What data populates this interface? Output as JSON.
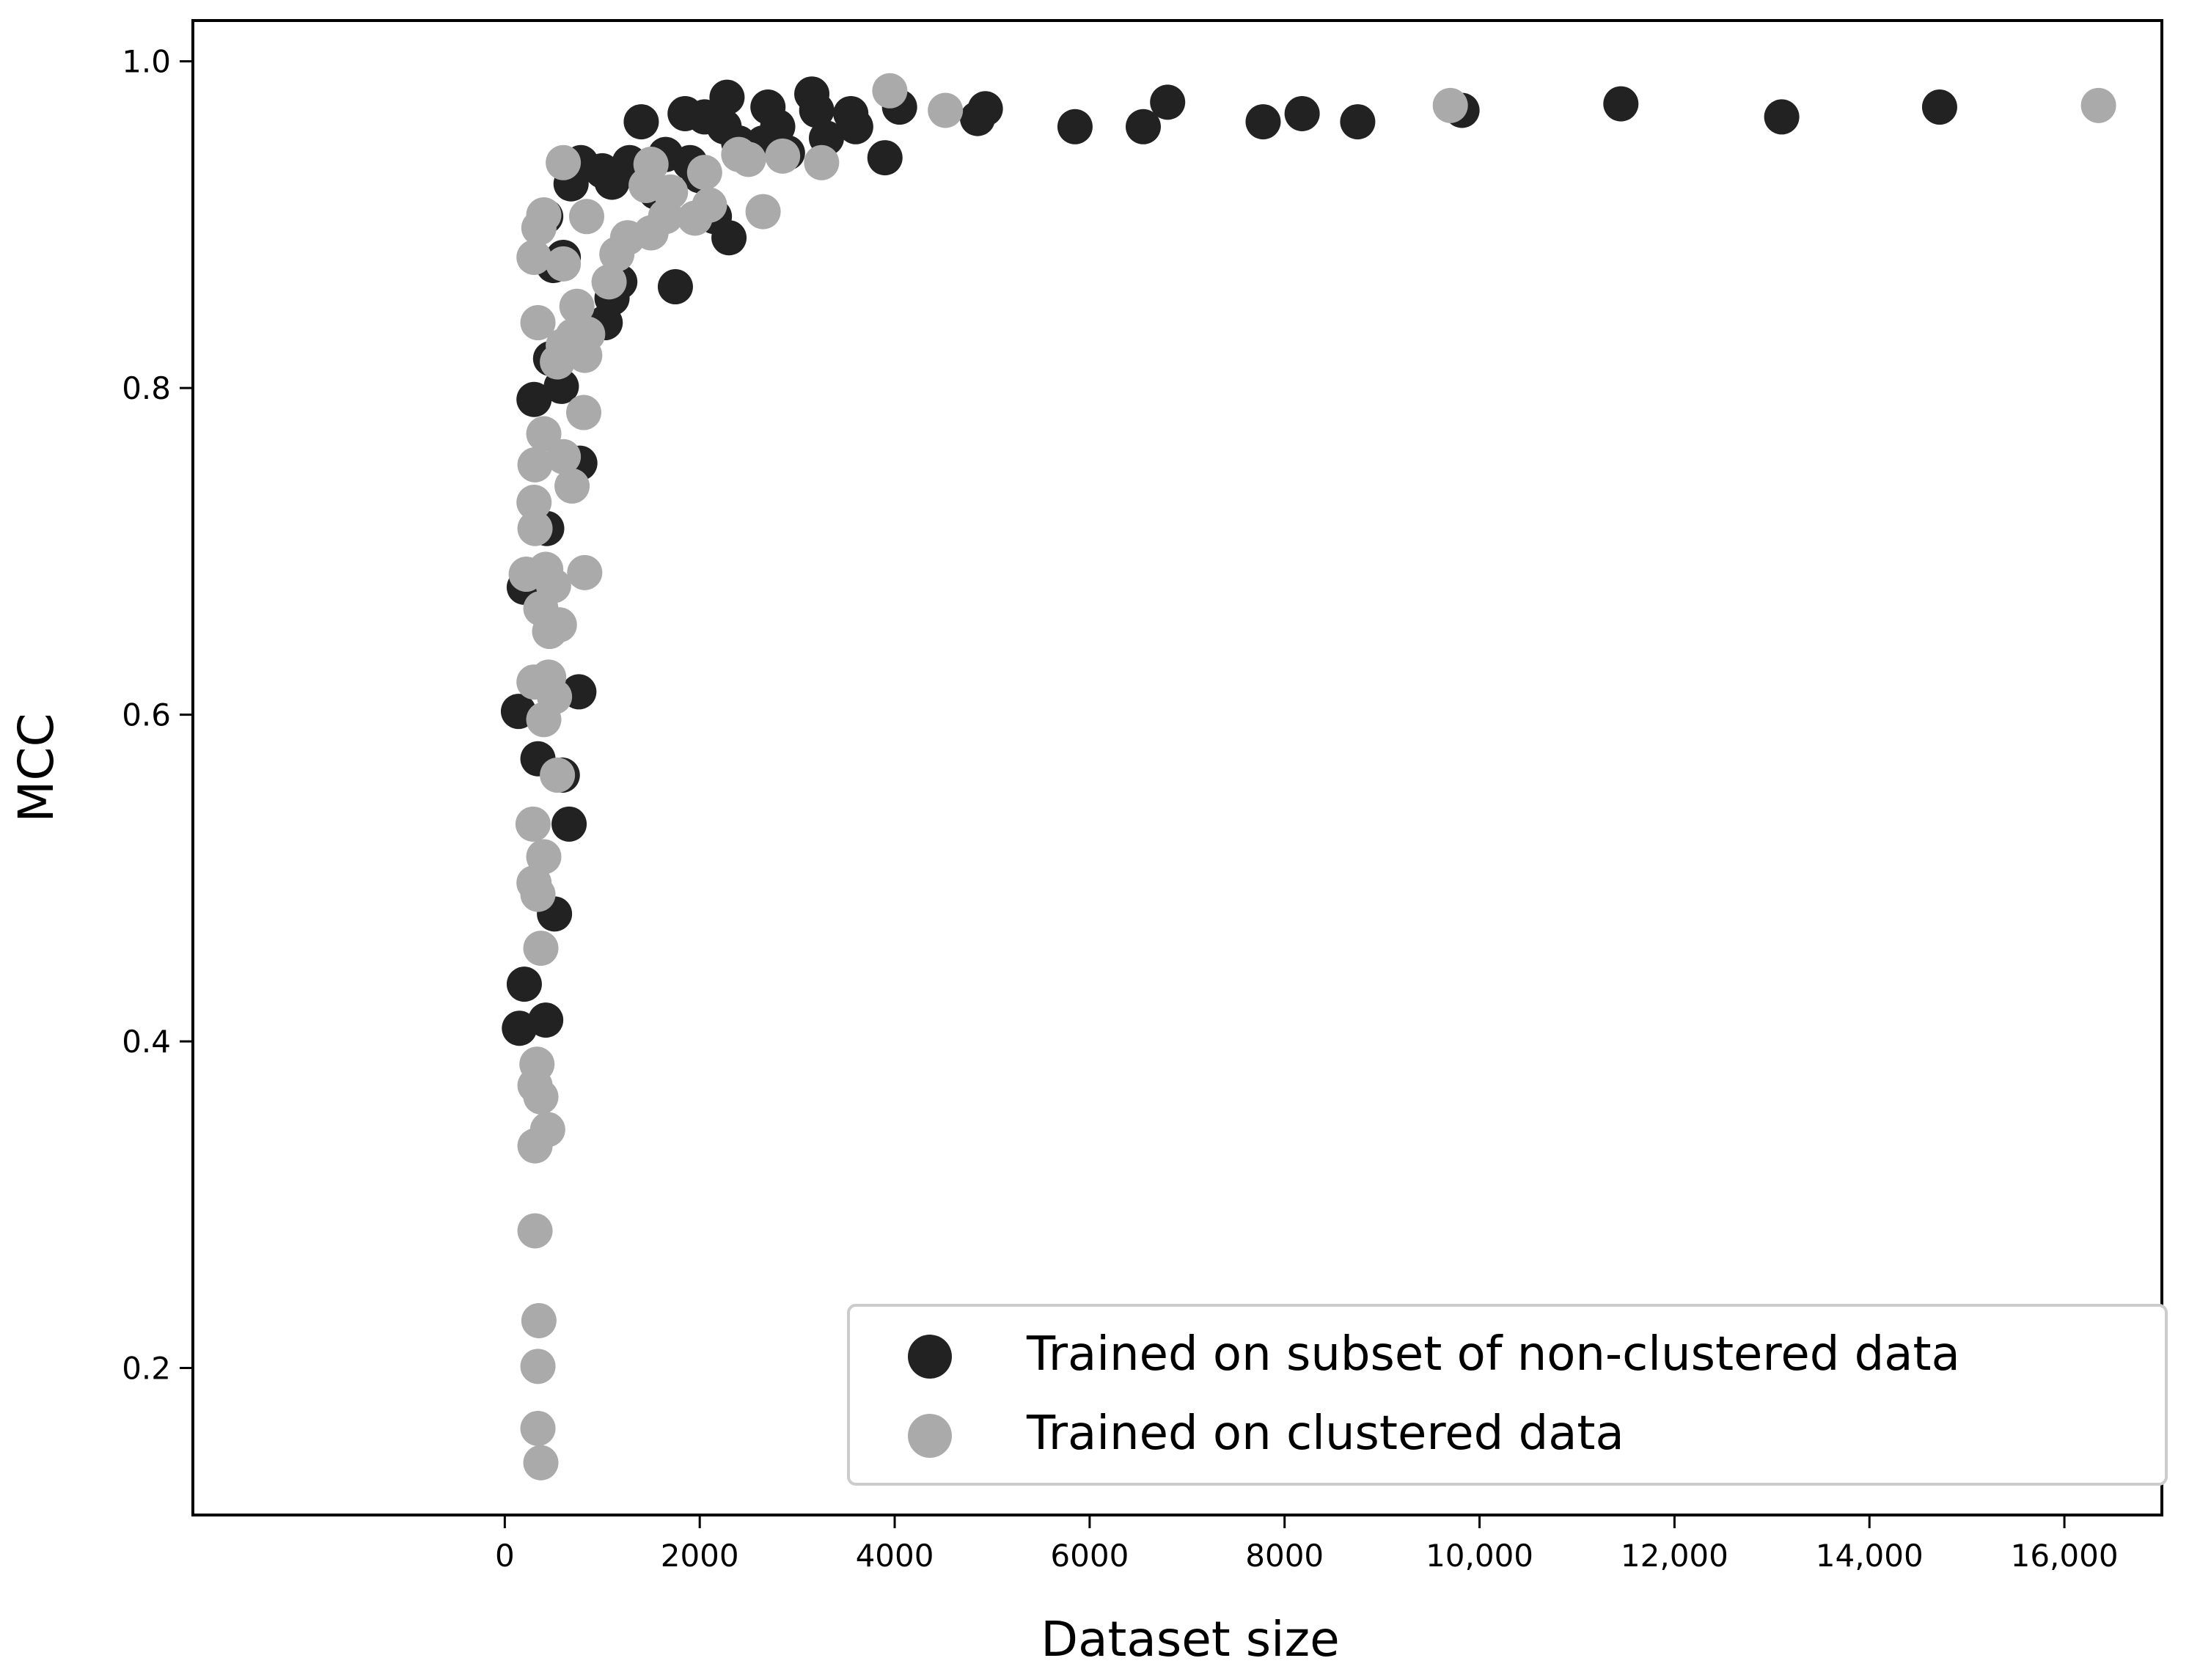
{
  "chart_data": {
    "type": "scatter",
    "xlabel": "Dataset size",
    "ylabel": "MCC",
    "xlim": [
      -3200,
      17000
    ],
    "ylim": [
      0.11,
      1.025
    ],
    "xticks": [
      0,
      2000,
      4000,
      6000,
      8000,
      10000,
      12000,
      14000,
      16000
    ],
    "xtick_labels": [
      "0",
      "2000",
      "4000",
      "6000",
      "8000",
      "10,000",
      "12,000",
      "14,000",
      "16,000"
    ],
    "yticks": [
      0.2,
      0.4,
      0.6,
      0.8,
      1.0
    ],
    "ytick_labels": [
      "0.2",
      "0.4",
      "0.6",
      "0.8",
      "1.0"
    ],
    "grid": false,
    "legend_position": "bottom-right",
    "series": [
      {
        "name": "Trained on subset of non-clustered data",
        "color": "#222222",
        "points": [
          [
            150,
            0.408
          ],
          [
            200,
            0.435
          ],
          [
            420,
            0.413
          ],
          [
            510,
            0.478
          ],
          [
            140,
            0.602
          ],
          [
            340,
            0.573
          ],
          [
            590,
            0.563
          ],
          [
            660,
            0.533
          ],
          [
            760,
            0.614
          ],
          [
            200,
            0.678
          ],
          [
            430,
            0.714
          ],
          [
            770,
            0.754
          ],
          [
            300,
            0.793
          ],
          [
            580,
            0.801
          ],
          [
            470,
            0.818
          ],
          [
            1030,
            0.84
          ],
          [
            1100,
            0.855
          ],
          [
            1180,
            0.865
          ],
          [
            500,
            0.875
          ],
          [
            600,
            0.88
          ],
          [
            420,
            0.905
          ],
          [
            680,
            0.925
          ],
          [
            780,
            0.938
          ],
          [
            1000,
            0.933
          ],
          [
            1100,
            0.926
          ],
          [
            1280,
            0.938
          ],
          [
            1400,
            0.963
          ],
          [
            1550,
            0.92
          ],
          [
            1650,
            0.943
          ],
          [
            1750,
            0.862
          ],
          [
            1850,
            0.968
          ],
          [
            1900,
            0.938
          ],
          [
            2000,
            0.93
          ],
          [
            2050,
            0.966
          ],
          [
            2150,
            0.905
          ],
          [
            2250,
            0.96
          ],
          [
            2280,
            0.978
          ],
          [
            2300,
            0.892
          ],
          [
            2400,
            0.95
          ],
          [
            2500,
            0.945
          ],
          [
            2650,
            0.95
          ],
          [
            2700,
            0.972
          ],
          [
            2800,
            0.96
          ],
          [
            2900,
            0.944
          ],
          [
            3150,
            0.98
          ],
          [
            3200,
            0.97
          ],
          [
            3300,
            0.953
          ],
          [
            3550,
            0.968
          ],
          [
            3600,
            0.96
          ],
          [
            3900,
            0.941
          ],
          [
            4050,
            0.972
          ],
          [
            4850,
            0.965
          ],
          [
            4930,
            0.971
          ],
          [
            5850,
            0.96
          ],
          [
            6550,
            0.96
          ],
          [
            6800,
            0.975
          ],
          [
            7780,
            0.963
          ],
          [
            8180,
            0.968
          ],
          [
            8750,
            0.963
          ],
          [
            9820,
            0.97
          ],
          [
            11450,
            0.974
          ],
          [
            13100,
            0.966
          ],
          [
            14720,
            0.972
          ]
        ]
      },
      {
        "name": "Trained on clustered data",
        "color": "#aaaaaa",
        "points": [
          [
            370,
            0.142
          ],
          [
            340,
            0.163
          ],
          [
            340,
            0.201
          ],
          [
            350,
            0.229
          ],
          [
            310,
            0.284
          ],
          [
            310,
            0.336
          ],
          [
            440,
            0.346
          ],
          [
            370,
            0.366
          ],
          [
            310,
            0.373
          ],
          [
            330,
            0.386
          ],
          [
            370,
            0.457
          ],
          [
            340,
            0.49
          ],
          [
            300,
            0.497
          ],
          [
            400,
            0.513
          ],
          [
            290,
            0.533
          ],
          [
            540,
            0.563
          ],
          [
            400,
            0.597
          ],
          [
            510,
            0.611
          ],
          [
            450,
            0.623
          ],
          [
            300,
            0.62
          ],
          [
            460,
            0.651
          ],
          [
            560,
            0.655
          ],
          [
            370,
            0.665
          ],
          [
            500,
            0.679
          ],
          [
            220,
            0.686
          ],
          [
            420,
            0.689
          ],
          [
            820,
            0.687
          ],
          [
            310,
            0.714
          ],
          [
            300,
            0.73
          ],
          [
            690,
            0.74
          ],
          [
            310,
            0.753
          ],
          [
            600,
            0.758
          ],
          [
            400,
            0.772
          ],
          [
            810,
            0.785
          ],
          [
            820,
            0.82
          ],
          [
            540,
            0.816
          ],
          [
            600,
            0.826
          ],
          [
            700,
            0.832
          ],
          [
            850,
            0.833
          ],
          [
            340,
            0.84
          ],
          [
            740,
            0.85
          ],
          [
            1070,
            0.865
          ],
          [
            300,
            0.88
          ],
          [
            600,
            0.876
          ],
          [
            1150,
            0.882
          ],
          [
            1260,
            0.892
          ],
          [
            1500,
            0.895
          ],
          [
            350,
            0.898
          ],
          [
            400,
            0.906
          ],
          [
            840,
            0.905
          ],
          [
            1650,
            0.905
          ],
          [
            1950,
            0.904
          ],
          [
            2100,
            0.912
          ],
          [
            2650,
            0.908
          ],
          [
            1700,
            0.92
          ],
          [
            1450,
            0.924
          ],
          [
            2050,
            0.932
          ],
          [
            1500,
            0.937
          ],
          [
            600,
            0.938
          ],
          [
            2400,
            0.943
          ],
          [
            2500,
            0.94
          ],
          [
            2850,
            0.942
          ],
          [
            3250,
            0.938
          ],
          [
            3950,
            0.982
          ],
          [
            4520,
            0.97
          ],
          [
            9700,
            0.973
          ],
          [
            16350,
            0.973
          ]
        ]
      }
    ]
  }
}
